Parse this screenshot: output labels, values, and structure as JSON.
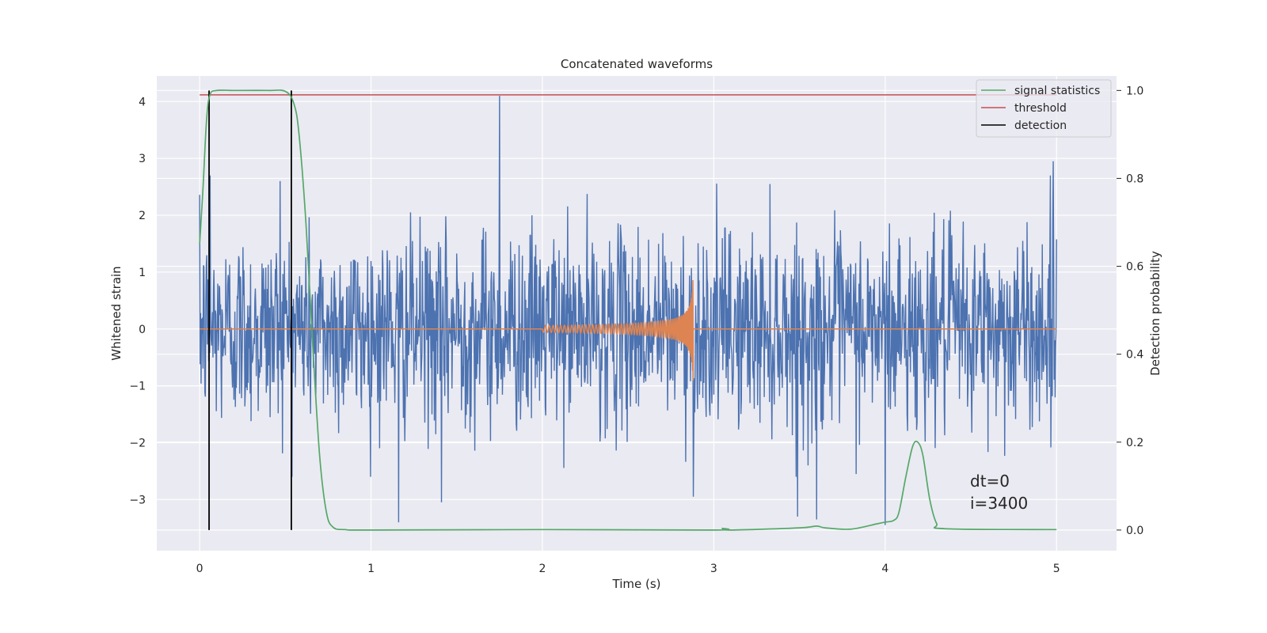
{
  "chart_data": {
    "type": "line",
    "title": "Concatenated waveforms",
    "xlabel": "Time (s)",
    "ylabel_left": "Whitened strain",
    "ylabel_right": "Detection probability",
    "xlim": [
      -0.25,
      5.35
    ],
    "ylim_left": [
      -3.9,
      4.45
    ],
    "ylim_right": [
      -0.047,
      1.033
    ],
    "x_ticks": [
      0,
      1,
      2,
      3,
      4,
      5
    ],
    "x_tick_labels": [
      "0",
      "1",
      "2",
      "3",
      "4",
      "5"
    ],
    "y_left_ticks": [
      -3,
      -2,
      -1,
      0,
      1,
      2,
      3,
      4
    ],
    "y_left_tick_labels": [
      "−3",
      "−2",
      "−1",
      "0",
      "1",
      "2",
      "3",
      "4"
    ],
    "y_right_ticks": [
      0.0,
      0.2,
      0.4,
      0.6,
      0.8,
      1.0
    ],
    "y_right_tick_labels": [
      "0.0",
      "0.2",
      "0.4",
      "0.6",
      "0.8",
      "1.0"
    ],
    "grid": true,
    "legend_position": "top-right",
    "background_color": "#eaeaf2",
    "series": [
      {
        "name": "",
        "kind": "noise",
        "axis": "left",
        "color": "#4c72b0",
        "x_range": [
          0,
          5
        ],
        "envelope": [
          -2.6,
          2.7
        ],
        "peaks_x": [
          0.06,
          0.47,
          1.16,
          1.41,
          1.75,
          2.88,
          3.49,
          3.55,
          3.6,
          4.0,
          4.98
        ],
        "peaks_y": [
          2.7,
          2.6,
          -3.4,
          -3.05,
          4.1,
          -2.95,
          -3.3,
          -2.4,
          -3.35,
          -3.45,
          2.95
        ]
      },
      {
        "name": "",
        "kind": "chirp",
        "axis": "left",
        "color": "#dd8452",
        "x_range": [
          0,
          5
        ],
        "chirp_start": 2.0,
        "chirp_end": 2.88,
        "peak_amplitude": 1.0
      },
      {
        "name": "signal statistics",
        "axis": "right",
        "color": "#55a868",
        "x": [
          0,
          0.02,
          0.04,
          0.06,
          0.1,
          0.2,
          0.4,
          0.5,
          0.55,
          0.58,
          0.62,
          0.66,
          0.7,
          0.74,
          0.78,
          0.85,
          1.0,
          2.0,
          3.0,
          3.05,
          3.1,
          3.5,
          3.6,
          3.65,
          3.8,
          3.95,
          4.0,
          4.05,
          4.08,
          4.12,
          4.16,
          4.19,
          4.22,
          4.26,
          4.3,
          4.35,
          5.0
        ],
        "values": [
          0.65,
          0.78,
          0.93,
          0.99,
          1.0,
          1.0,
          1.0,
          0.998,
          0.97,
          0.9,
          0.7,
          0.42,
          0.17,
          0.04,
          0.006,
          0.001,
          0.0,
          0.001,
          0.0,
          0.004,
          0.0,
          0.005,
          0.009,
          0.005,
          0.002,
          0.014,
          0.018,
          0.022,
          0.04,
          0.12,
          0.19,
          0.2,
          0.17,
          0.07,
          0.015,
          0.003,
          0.001
        ]
      },
      {
        "name": "threshold",
        "axis": "right",
        "color": "#c44e52",
        "x": [
          0,
          5
        ],
        "values": [
          0.99,
          0.99
        ]
      },
      {
        "name": "detection",
        "axis": "right",
        "color": "#000000",
        "vlines_x": [
          0.055,
          0.535
        ],
        "vline_range": [
          0.0,
          1.0
        ]
      }
    ],
    "annotations": [
      {
        "text": "dt=0",
        "x": 4.5,
        "y": -2.6
      },
      {
        "text": "i=3400",
        "x": 4.5,
        "y": -3.05
      }
    ]
  }
}
